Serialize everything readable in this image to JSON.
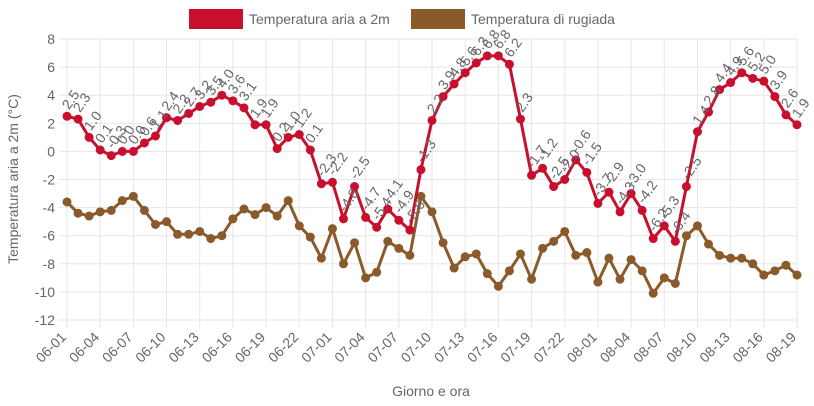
{
  "chart_data": {
    "type": "line",
    "xlabel": "Giorno e ora",
    "ylabel": "Temperatura aria a 2m (°C)",
    "ylim": [
      -12,
      8
    ],
    "y_ticks": [
      -12,
      -10,
      -8,
      -6,
      -4,
      -2,
      0,
      2,
      4,
      6,
      8
    ],
    "x_tick_labels": [
      "06-01",
      "06-04",
      "06-07",
      "06-10",
      "06-13",
      "06-16",
      "06-19",
      "06-22",
      "07-01",
      "07-04",
      "07-07",
      "07-10",
      "07-13",
      "07-16",
      "07-19",
      "07-22",
      "08-01",
      "08-04",
      "08-07",
      "08-10",
      "08-13",
      "08-16",
      "08-19"
    ],
    "grid": true,
    "legend_position": "top",
    "series": [
      {
        "name": "Temperatura aria a 2m",
        "color": "#c8102e",
        "data_labels": true,
        "values": [
          2.5,
          2.3,
          1.0,
          0.1,
          -0.3,
          0.0,
          0.0,
          0.6,
          1.1,
          2.4,
          2.2,
          2.7,
          3.2,
          3.5,
          4.0,
          3.6,
          3.1,
          1.9,
          1.9,
          0.2,
          1.0,
          1.2,
          0.1,
          -2.3,
          -2.2,
          -4.8,
          -2.5,
          -4.7,
          -5.4,
          -4.1,
          -4.9,
          -5.6,
          -1.3,
          2.2,
          3.9,
          4.8,
          5.6,
          6.3,
          6.8,
          6.8,
          6.2,
          2.3,
          -1.7,
          -1.2,
          -2.5,
          -2.0,
          -0.6,
          -1.5,
          -3.7,
          -2.9,
          -4.3,
          -3.0,
          -4.2,
          -6.2,
          -5.3,
          -6.4,
          -2.5,
          1.4,
          2.8,
          4.4,
          4.9,
          5.6,
          5.2,
          5.0,
          3.9,
          2.6,
          1.9
        ]
      },
      {
        "name": "Temperatura di rugiada",
        "color": "#8b5a2b",
        "data_labels": false,
        "values": [
          -3.6,
          -4.4,
          -4.6,
          -4.3,
          -4.2,
          -3.5,
          -3.2,
          -4.2,
          -5.2,
          -5.0,
          -5.9,
          -5.9,
          -5.7,
          -6.2,
          -6.0,
          -4.8,
          -4.1,
          -4.5,
          -4.0,
          -4.6,
          -3.5,
          -5.3,
          -6.1,
          -7.6,
          -5.5,
          -8.0,
          -6.5,
          -9.0,
          -8.6,
          -6.4,
          -6.9,
          -7.4,
          -3.2,
          -4.3,
          -6.5,
          -8.3,
          -7.5,
          -7.3,
          -8.7,
          -9.6,
          -8.5,
          -7.3,
          -9.1,
          -6.9,
          -6.4,
          -5.7,
          -7.4,
          -7.2,
          -9.3,
          -7.6,
          -9.1,
          -7.7,
          -8.5,
          -10.1,
          -9.0,
          -9.4,
          -6.0,
          -5.3,
          -6.6,
          -7.4,
          -7.6,
          -7.6,
          -8.0,
          -8.8,
          -8.5,
          -8.1,
          -8.8
        ]
      }
    ]
  }
}
